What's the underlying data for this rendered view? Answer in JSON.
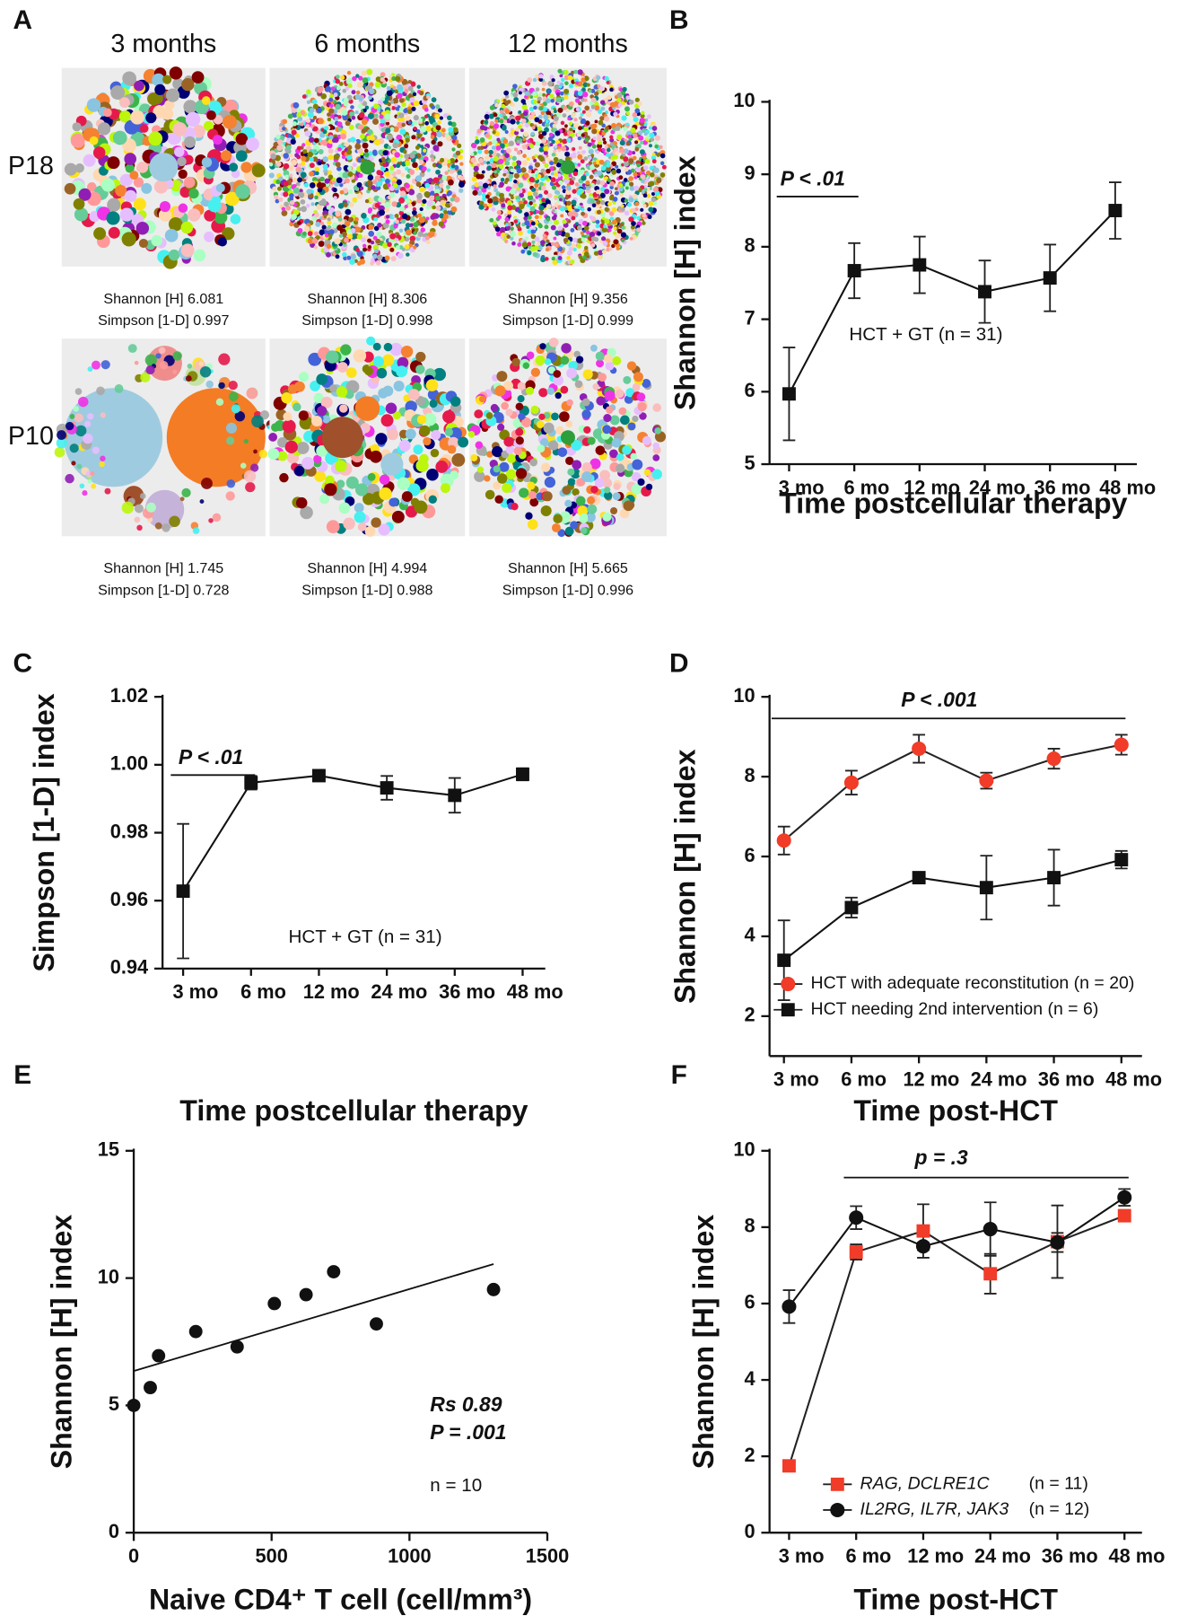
{
  "panel_a": {
    "label": "A",
    "columns": [
      "3 months",
      "6 months",
      "12 months"
    ],
    "rows": [
      {
        "label": "P18",
        "stats": [
          [
            "Shannon [H] 6.081",
            "Simpson [1-D] 0.997"
          ],
          [
            "Shannon [H] 8.306",
            "Simpson [1-D] 0.998"
          ],
          [
            "Shannon [H] 9.356",
            "Simpson [1-D] 0.999"
          ]
        ]
      },
      {
        "label": "P10",
        "stats": [
          [
            "Shannon [H] 1.745",
            "Simpson [1-D] 0.728"
          ],
          [
            "Shannon [H] 4.994",
            "Simpson [1-D] 0.988"
          ],
          [
            "Shannon [H] 5.665",
            "Simpson [1-D] 0.996"
          ]
        ]
      }
    ]
  },
  "chart_data": [
    {
      "type": "line",
      "panel": "B",
      "ylabel": "Shannon [H] index",
      "xlabel": "Time postcellular therapy",
      "categories": [
        "3 mo",
        "6 mo",
        "12 mo",
        "24 mo",
        "36 mo",
        "48 mo"
      ],
      "series": [
        {
          "color": "#111111",
          "marker": "square",
          "values": [
            5.97,
            7.67,
            7.75,
            7.38,
            7.57,
            8.5
          ],
          "errors": [
            0.64,
            0.38,
            0.39,
            0.43,
            0.46,
            0.39
          ]
        }
      ],
      "ylim": [
        5,
        10
      ],
      "yticks": [
        5,
        6,
        7,
        8,
        9,
        10
      ],
      "annotations": [
        "P < .01",
        "HCT + GT (n = 31)"
      ]
    },
    {
      "type": "line",
      "panel": "C",
      "ylabel": "Simpson [1-D] index",
      "xlabel": "Time postcellular therapy",
      "categories": [
        "3 mo",
        "6 mo",
        "12 mo",
        "24 mo",
        "36 mo",
        "48 mo"
      ],
      "series": [
        {
          "color": "#111111",
          "marker": "square",
          "values": [
            0.9628,
            0.9947,
            0.9968,
            0.9932,
            0.991,
            0.9972
          ],
          "errors": [
            0.0198,
            0.002,
            0.0012,
            0.0035,
            0.0051,
            0.0018
          ]
        }
      ],
      "ylim": [
        0.94,
        1.02
      ],
      "yticks": [
        0.94,
        0.96,
        0.98,
        {
          "value": 1.0,
          "label": "1.00"
        },
        1.02
      ],
      "annotations": [
        "P < .01",
        "HCT + GT (n = 31)"
      ]
    },
    {
      "type": "line",
      "panel": "D",
      "ylabel": "Shannon [H] index",
      "xlabel": "Time post-HCT",
      "categories": [
        "3 mo",
        "6 mo",
        "12 mo",
        "24 mo",
        "36 mo",
        "48 mo"
      ],
      "series": [
        {
          "name": "HCT with adequate reconstitution (n = 20)",
          "color": "#f03c28",
          "marker": "circle",
          "values": [
            6.4,
            7.85,
            8.7,
            7.9,
            8.45,
            8.8
          ],
          "errors": [
            0.35,
            0.3,
            0.35,
            0.2,
            0.25,
            0.25
          ]
        },
        {
          "name": "HCT needing 2nd intervention (n = 6)",
          "color": "#111111",
          "marker": "square",
          "values": [
            3.4,
            4.72,
            5.47,
            5.22,
            5.47,
            5.92
          ],
          "errors": [
            1.0,
            0.25,
            0.1,
            0.8,
            0.7,
            0.22
          ]
        }
      ],
      "ylim": [
        1,
        10
      ],
      "yticks": [
        2,
        4,
        6,
        8,
        10
      ],
      "annotations": [
        "P < .001"
      ]
    },
    {
      "type": "scatter",
      "panel": "E",
      "ylabel": "Shannon [H] index",
      "xlabel": "Naive CD4⁺ T cell (cell/mm³)",
      "x": [
        0,
        60,
        90,
        225,
        375,
        510,
        625,
        725,
        880,
        1305
      ],
      "y": [
        5.0,
        5.7,
        6.95,
        7.9,
        7.3,
        9.0,
        9.35,
        10.25,
        8.2,
        9.55
      ],
      "fit": {
        "x": [
          0,
          1305
        ],
        "y": [
          6.35,
          10.55
        ]
      },
      "xlim": [
        0,
        1500
      ],
      "xticks": [
        0,
        500,
        1000,
        1500
      ],
      "ylim": [
        0,
        15
      ],
      "yticks": [
        0,
        5,
        10,
        15
      ],
      "annotations": [
        "Rs 0.89",
        "P = .001",
        "n = 10"
      ]
    },
    {
      "type": "line",
      "panel": "F",
      "ylabel": "Shannon [H] index",
      "xlabel": "Time post-HCT",
      "categories": [
        "3 mo",
        "6 mo",
        "12 mo",
        "24 mo",
        "36 mo",
        "48 mo"
      ],
      "series": [
        {
          "name": "RAG, DCLRE1C",
          "n_label": "(n = 11)",
          "color": "#f03c28",
          "marker": "square",
          "values": [
            1.75,
            7.35,
            7.9,
            6.78,
            7.62,
            8.3
          ],
          "errors": [
            0.05,
            0.2,
            0.7,
            0.52,
            0.95,
            0.15
          ]
        },
        {
          "name": "IL2RG, IL7R, JAK3",
          "n_label": "(n = 12)",
          "color": "#111111",
          "marker": "circle",
          "values": [
            5.92,
            8.25,
            7.5,
            7.95,
            7.6,
            8.78
          ],
          "errors": [
            0.43,
            0.3,
            0.1,
            0.7,
            0.25,
            0.22
          ]
        }
      ],
      "ylim": [
        0,
        10
      ],
      "yticks": [
        0,
        2,
        4,
        6,
        8,
        10
      ],
      "annotations": [
        "p = .3"
      ]
    }
  ]
}
